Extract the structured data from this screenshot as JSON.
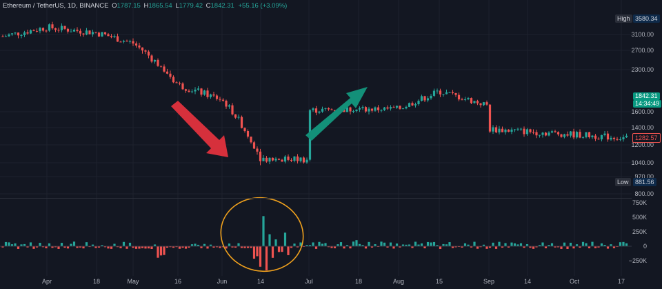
{
  "header": {
    "symbol": "Ethereum / TetherUS, 1D, BINANCE",
    "o_label": "O",
    "o": "1787.15",
    "h_label": "H",
    "h": "1865.54",
    "l_label": "L",
    "l": "1779.42",
    "c_label": "C",
    "c": "1842.31",
    "change": "+55.16 (+3.09%)"
  },
  "markers": {
    "high_label": "High",
    "high_value": "3580.34",
    "low_label": "Low",
    "low_value": "881.56",
    "price": "1842.31",
    "countdown": "14:34:49",
    "red_level": "1282.57"
  },
  "colors": {
    "up": "#26a69a",
    "down": "#ef5350",
    "bg": "#131722",
    "arrow_down": "#d6303c",
    "arrow_up": "#139079",
    "ellipse": "#f0a11d"
  },
  "chart_data": {
    "type": "candlestick",
    "price_axis_ticks": [
      3100,
      2700,
      2300,
      1600,
      1400,
      1200,
      1040,
      970,
      800
    ],
    "price_axis_labels": [
      "3100.00",
      "2700.00",
      "2300.00",
      "1600.00",
      "1400.00",
      "1200.00",
      "1040.00",
      "970.00",
      "800.00"
    ],
    "volume_axis_ticks": [
      750000,
      500000,
      250000,
      0,
      -250000
    ],
    "volume_axis_labels": [
      "750K",
      "500K",
      "250K",
      "0",
      "−250K"
    ],
    "x_ticks": [
      "Apr",
      "18",
      "May",
      "16",
      "Jun",
      "14",
      "Jul",
      "18",
      "Aug",
      "15",
      "Sep",
      "14",
      "Oct",
      "17"
    ],
    "close_path": [
      [
        "Apr",
        3300
      ],
      [
        "18",
        3150
      ],
      [
        "May",
        2880
      ],
      [
        "16",
        2050
      ],
      [
        "Jun",
        1800
      ],
      [
        "14",
        1080
      ],
      [
        "Jul",
        1070
      ],
      [
        "18",
        1570
      ],
      [
        "Aug",
        1650
      ],
      [
        "15",
        1940
      ],
      [
        "Sep",
        1700
      ],
      [
        "14",
        1550
      ],
      [
        "Oct",
        1320
      ],
      [
        "17",
        1282
      ]
    ],
    "annotations": [
      {
        "type": "arrow",
        "direction": "down",
        "color": "#d6303c"
      },
      {
        "type": "arrow",
        "direction": "up",
        "color": "#139079"
      },
      {
        "type": "ellipse",
        "target": "volume spike June",
        "color": "#f0a11d"
      }
    ]
  }
}
